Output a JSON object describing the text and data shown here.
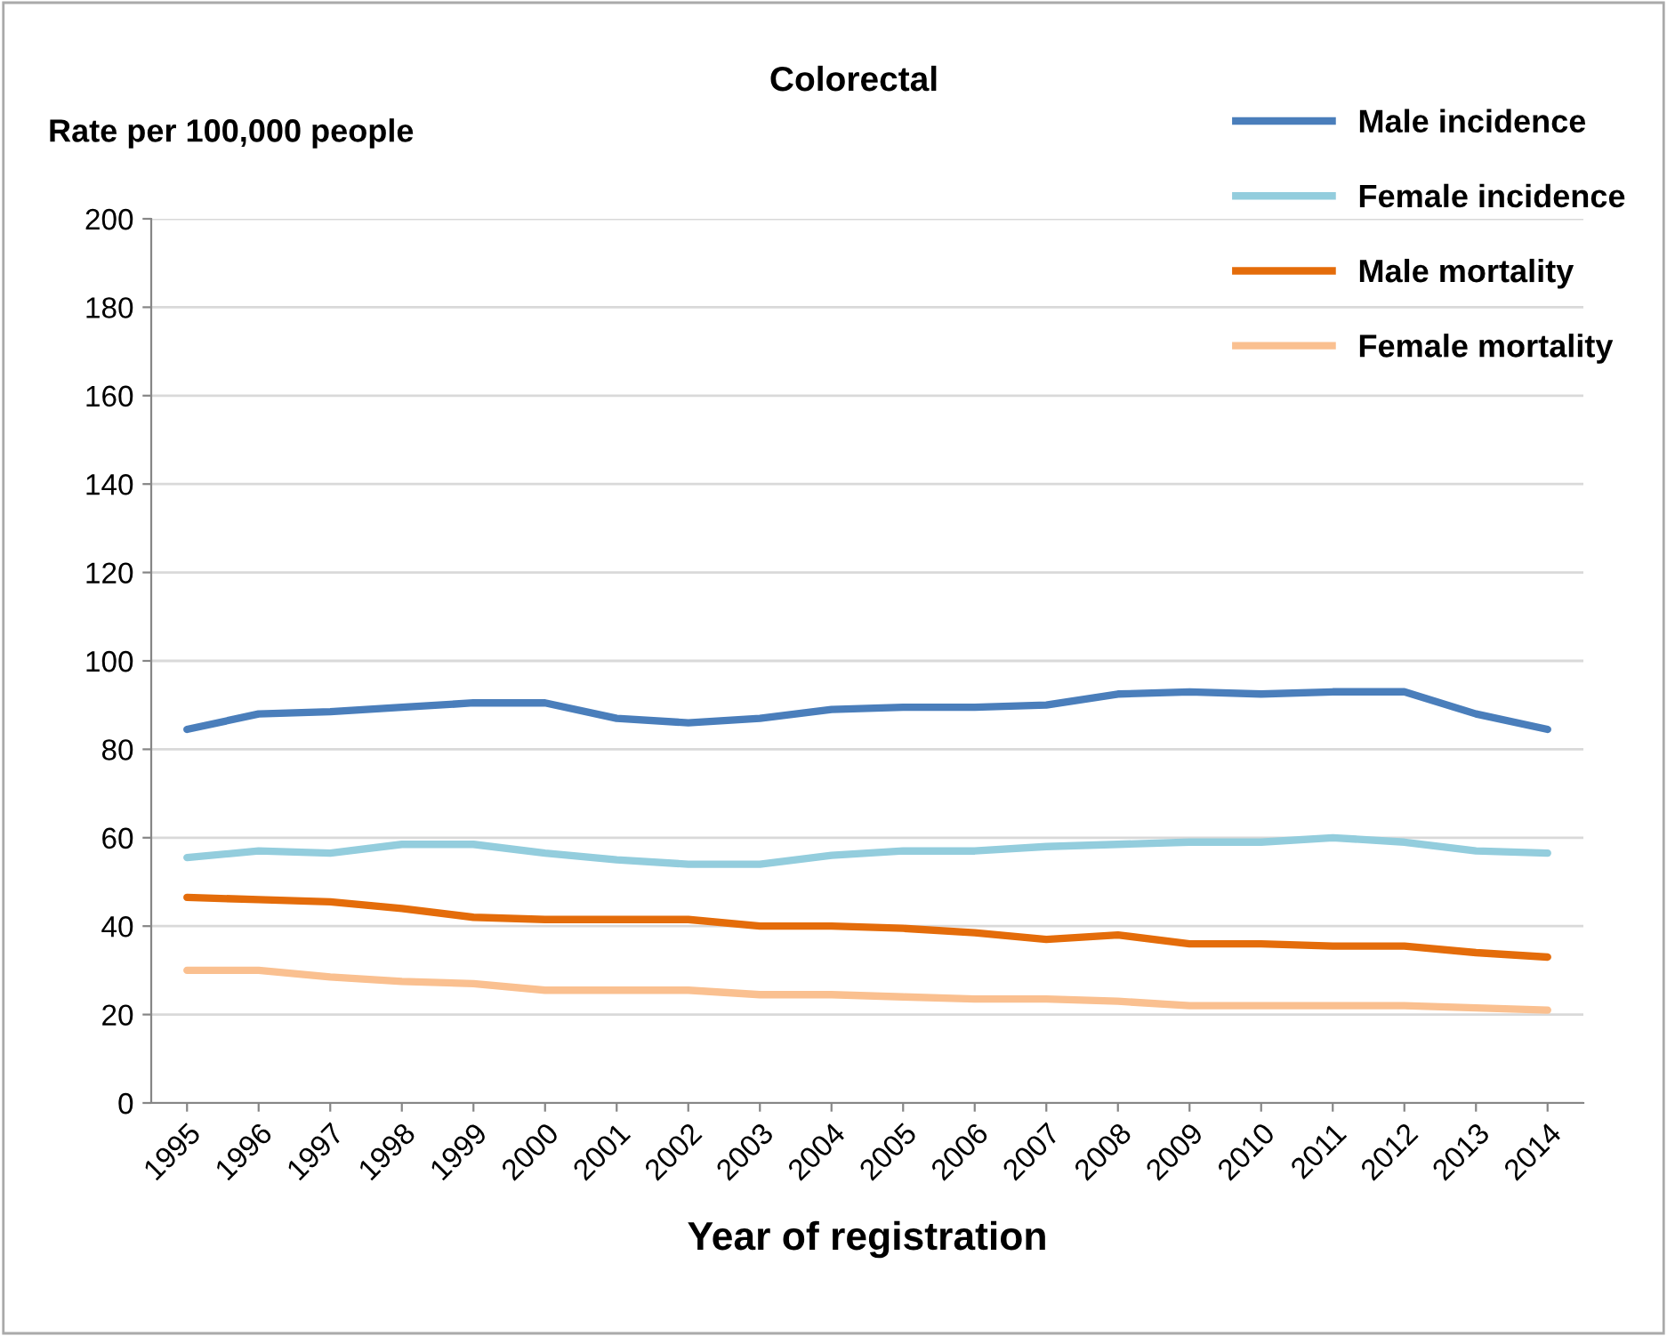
{
  "chart_data": {
    "type": "line",
    "title": "Colorectal",
    "ylabel": "Rate per 100,000 people",
    "xlabel": "Year of registration",
    "categories": [
      "1995",
      "1996",
      "1997",
      "1998",
      "1999",
      "2000",
      "2001",
      "2002",
      "2003",
      "2004",
      "2005",
      "2006",
      "2007",
      "2008",
      "2009",
      "2010",
      "2011",
      "2012",
      "2013",
      "2014"
    ],
    "series": [
      {
        "name": "Male incidence",
        "color": "#4a7ebb",
        "values": [
          84.5,
          88,
          88.5,
          89.5,
          90.5,
          90.5,
          87,
          86,
          87,
          89,
          89.5,
          89.5,
          90,
          92.5,
          93,
          92.5,
          93,
          93,
          88,
          84.5
        ]
      },
      {
        "name": "Female incidence",
        "color": "#93cddd",
        "values": [
          55.5,
          57,
          56.5,
          58.5,
          58.5,
          56.5,
          55,
          54,
          54,
          56,
          57,
          57,
          58,
          58.5,
          59,
          59,
          60,
          59,
          57,
          56.5
        ]
      },
      {
        "name": "Male mortality",
        "color": "#e46c0a",
        "values": [
          46.5,
          46,
          45.5,
          44,
          42,
          41.5,
          41.5,
          41.5,
          40,
          40,
          39.5,
          38.5,
          37,
          38,
          36,
          36,
          35.5,
          35.5,
          34,
          33
        ]
      },
      {
        "name": "Female mortality",
        "color": "#fac090",
        "values": [
          30,
          30,
          28.5,
          27.5,
          27,
          25.5,
          25.5,
          25.5,
          24.5,
          24.5,
          24,
          23.5,
          23.5,
          23,
          22,
          22,
          22,
          22,
          21.5,
          21
        ]
      }
    ],
    "ylim": [
      0,
      200
    ],
    "yticks": [
      0,
      20,
      40,
      60,
      80,
      100,
      120,
      140,
      160,
      180,
      200
    ],
    "grid": "y",
    "legend": "top right",
    "marker": "none",
    "line_style": "solid"
  }
}
